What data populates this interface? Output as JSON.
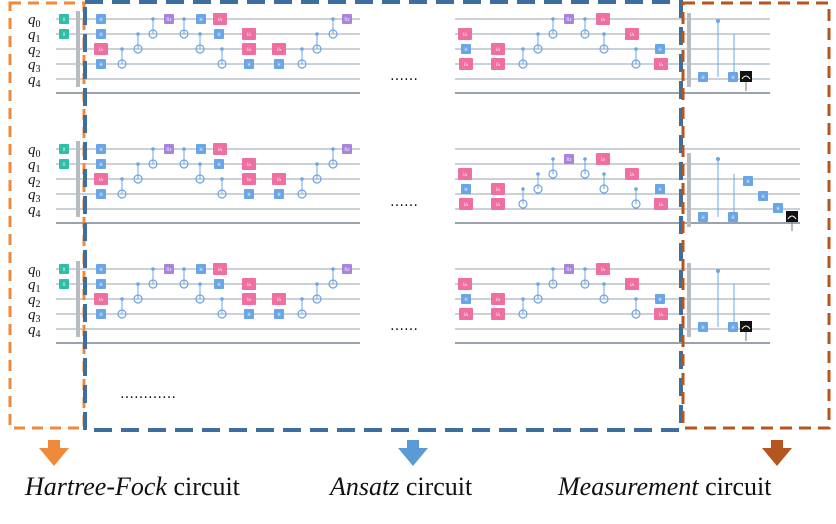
{
  "qubit_labels": [
    {
      "letter": "q",
      "index": "0"
    },
    {
      "letter": "q",
      "index": "1"
    },
    {
      "letter": "q",
      "index": "2"
    },
    {
      "letter": "q",
      "index": "3"
    },
    {
      "letter": "q",
      "index": "4"
    }
  ],
  "ellipsis_mid": "……",
  "ellipsis_more": "…………",
  "gate_labels": {
    "x": "X",
    "h": "H",
    "rz": "Rz",
    "u": "U₃",
    "meas": "M"
  },
  "captions": {
    "hartree_fock": {
      "emph": "Hartree-Fock",
      "rest": " circuit"
    },
    "ansatz": {
      "emph": "Ansatz",
      "rest": " circuit"
    },
    "measurement": {
      "emph": "Measurement",
      "rest": " circuit"
    }
  },
  "colors": {
    "hartree_fock": "#f08a3a",
    "ansatz": "#3d6e9e",
    "measurement": "#b5561f",
    "x_gate": "#2fbfa6",
    "h_gate": "#6aa5e8",
    "u_gate": "#ee6fa0",
    "rz_gate": "#a884e0",
    "control": "#6aa5e8",
    "wire": "#9aa3ad",
    "arrow_ansatz": "#5b9bd5"
  }
}
